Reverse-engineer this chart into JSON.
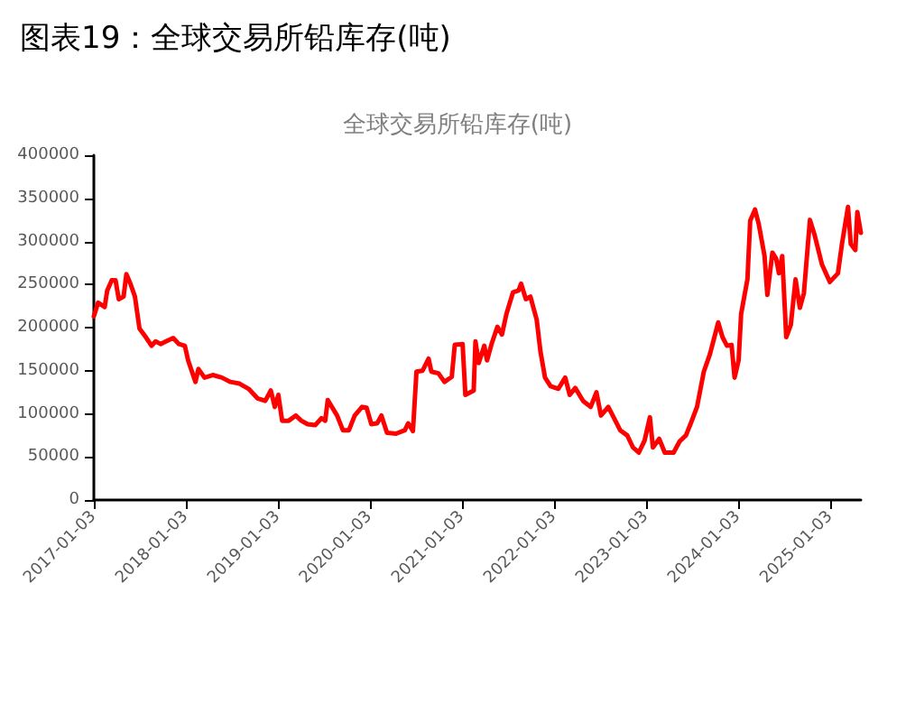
{
  "chart_data": {
    "type": "line",
    "title": "图表19：全球交易所铅库存(吨)",
    "subtitle": "全球交易所铅库存(吨)",
    "series": [
      {
        "color": "#ff0000",
        "x": [
          "2017-01-03",
          "2017-01-20",
          "2017-02-15",
          "2017-02-25",
          "2017-03-15",
          "2017-03-30",
          "2017-04-12",
          "2017-05-01",
          "2017-05-12",
          "2017-05-28",
          "2017-06-15",
          "2017-07-03",
          "2017-07-28",
          "2017-08-20",
          "2017-09-05",
          "2017-09-25",
          "2017-10-16",
          "2017-11-14",
          "2017-12-06",
          "2017-12-30",
          "2018-01-12",
          "2018-02-10",
          "2018-02-22",
          "2018-03-18",
          "2018-04-20",
          "2018-05-26",
          "2018-06-29",
          "2018-08-04",
          "2018-09-09",
          "2018-10-14",
          "2018-11-14",
          "2018-12-06",
          "2018-12-22",
          "2019-01-05",
          "2019-01-20",
          "2019-02-15",
          "2019-03-15",
          "2019-04-06",
          "2019-05-01",
          "2019-06-01",
          "2019-06-25",
          "2019-07-10",
          "2019-07-20",
          "2019-08-26",
          "2019-09-18",
          "2019-10-12",
          "2019-11-04",
          "2019-12-03",
          "2019-12-21",
          "2020-01-09",
          "2020-02-01",
          "2020-02-18",
          "2020-03-11",
          "2020-04-16",
          "2020-05-21",
          "2020-06-03",
          "2020-06-22",
          "2020-07-06",
          "2020-07-30",
          "2020-08-23",
          "2020-09-03",
          "2020-10-01",
          "2020-10-25",
          "2020-11-23",
          "2020-12-05",
          "2021-01-05",
          "2021-01-16",
          "2021-02-18",
          "2021-02-25",
          "2021-03-10",
          "2021-04-01",
          "2021-04-12",
          "2021-05-01",
          "2021-05-23",
          "2021-06-10",
          "2021-06-28",
          "2021-07-24",
          "2021-08-15",
          "2021-08-25",
          "2021-09-13",
          "2021-10-01",
          "2021-10-26",
          "2021-11-10",
          "2021-11-28",
          "2021-12-20",
          "2022-01-20",
          "2022-02-16",
          "2022-03-06",
          "2022-03-28",
          "2022-04-28",
          "2022-05-28",
          "2022-06-20",
          "2022-07-08",
          "2022-08-06",
          "2022-08-29",
          "2022-09-22",
          "2022-10-20",
          "2022-11-12",
          "2022-12-05",
          "2022-12-28",
          "2023-01-18",
          "2023-01-30",
          "2023-02-24",
          "2023-03-18",
          "2023-04-22",
          "2023-05-16",
          "2023-06-10",
          "2023-06-28",
          "2023-07-24",
          "2023-08-20",
          "2023-09-13",
          "2023-10-01",
          "2023-10-16",
          "2023-11-02",
          "2023-11-20",
          "2023-12-08",
          "2023-12-20",
          "2024-01-05",
          "2024-01-15",
          "2024-02-09",
          "2024-02-20",
          "2024-03-10",
          "2024-03-25",
          "2024-04-17",
          "2024-04-28",
          "2024-05-18",
          "2024-06-02",
          "2024-06-13",
          "2024-06-26",
          "2024-07-12",
          "2024-07-30",
          "2024-08-18",
          "2024-09-04",
          "2024-09-20",
          "2024-10-14",
          "2024-11-02",
          "2024-12-01",
          "2025-01-01",
          "2025-02-02",
          "2025-02-18",
          "2025-03-14",
          "2025-03-25",
          "2025-04-12",
          "2025-04-20",
          "2025-05-04"
        ],
        "values": [
          213000,
          229000,
          224000,
          243000,
          255000,
          255000,
          233000,
          236000,
          262000,
          251000,
          236000,
          199000,
          189000,
          179000,
          184000,
          181000,
          184000,
          188000,
          181000,
          179000,
          162000,
          137000,
          152000,
          142000,
          145000,
          142000,
          137000,
          135000,
          129000,
          118000,
          115000,
          127000,
          108000,
          122000,
          92000,
          92000,
          98000,
          92000,
          88000,
          87000,
          95000,
          92000,
          116000,
          98000,
          81000,
          81000,
          98000,
          108000,
          107000,
          88000,
          89000,
          98000,
          78000,
          77000,
          81000,
          89000,
          80000,
          149000,
          150000,
          164000,
          149000,
          147000,
          137000,
          143000,
          180000,
          181000,
          122000,
          127000,
          184000,
          159000,
          179000,
          162000,
          182000,
          201000,
          192000,
          216000,
          241000,
          243000,
          251000,
          233000,
          236000,
          209000,
          172000,
          142000,
          132000,
          129000,
          142000,
          122000,
          130000,
          115000,
          108000,
          125000,
          98000,
          108000,
          95000,
          81000,
          75000,
          61000,
          55000,
          69000,
          96000,
          61000,
          71000,
          55000,
          55000,
          68000,
          75000,
          88000,
          108000,
          149000,
          169000,
          189000,
          206000,
          189000,
          179000,
          180000,
          142000,
          162000,
          216000,
          256000,
          324000,
          337000,
          320000,
          283000,
          238000,
          287000,
          280000,
          263000,
          283000,
          189000,
          203000,
          256000,
          223000,
          240000,
          325000,
          307000,
          273000,
          253000,
          263000,
          297000,
          340000,
          297000,
          290000,
          334000,
          310000
        ]
      }
    ],
    "xlim": [
      "2017-01-03",
      "2025-05-04"
    ],
    "xticks": [
      "2017-01-03",
      "2018-01-03",
      "2019-01-03",
      "2020-01-03",
      "2021-01-03",
      "2022-01-03",
      "2023-01-03",
      "2024-01-03",
      "2025-01-03"
    ],
    "ylim": [
      0,
      400000
    ],
    "yticks": [
      0,
      50000,
      100000,
      150000,
      200000,
      250000,
      300000,
      350000,
      400000
    ],
    "grid": false,
    "marker": "none",
    "line_style": "solid"
  }
}
